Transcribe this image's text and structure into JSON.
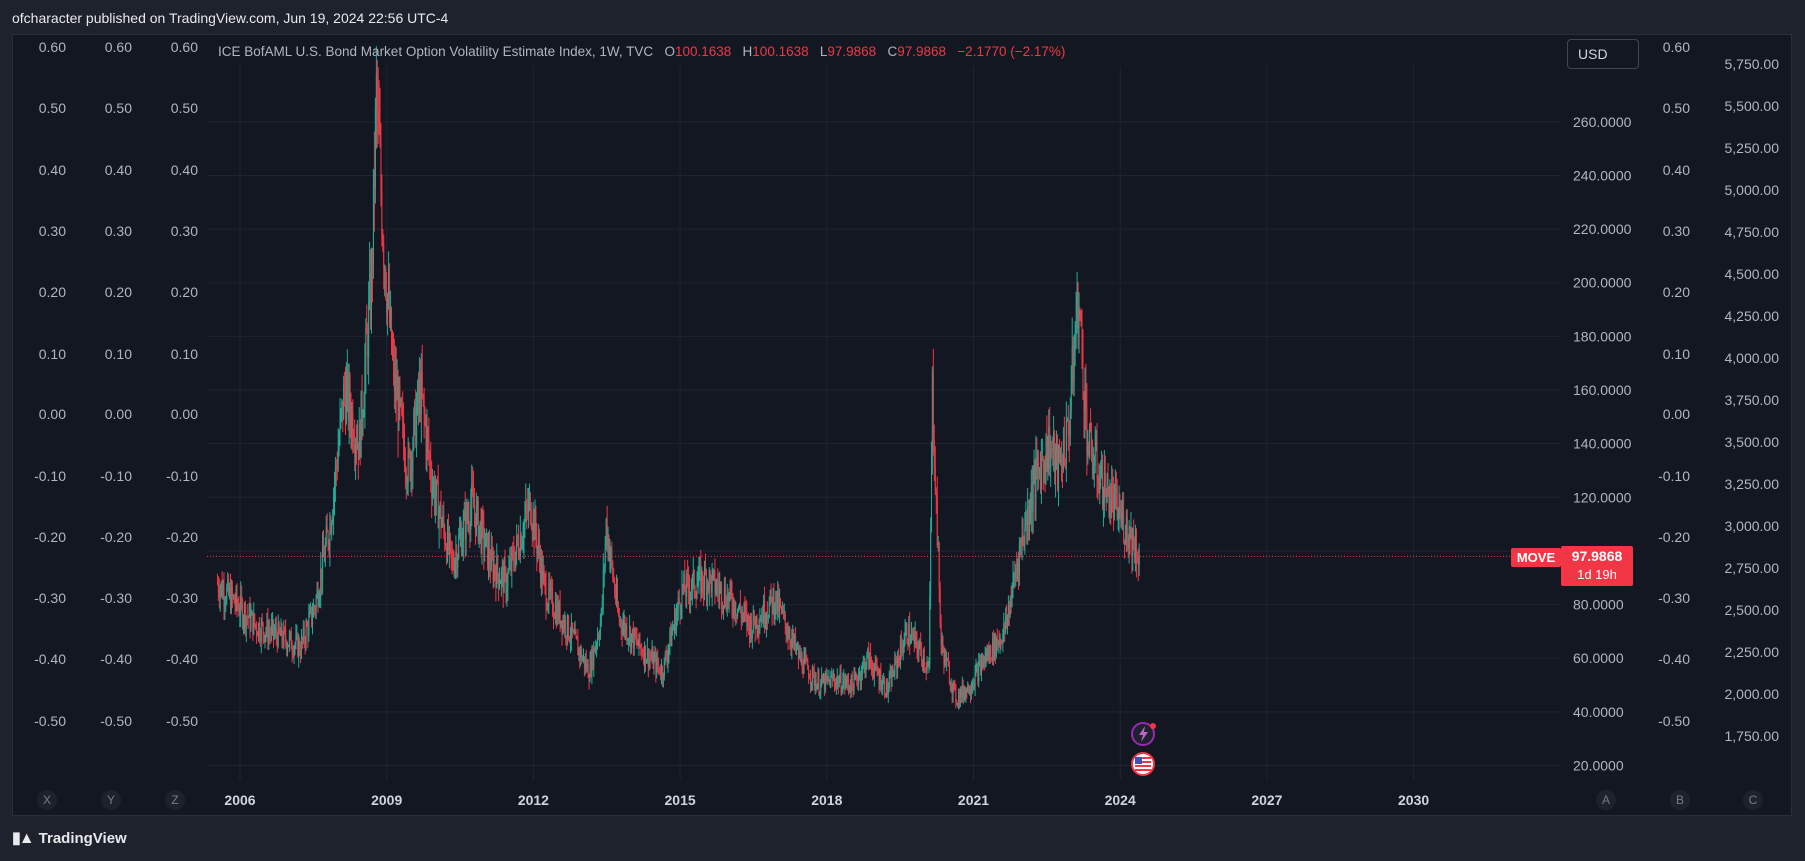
{
  "header": {
    "published": "ofcharacter published on TradingView.com, Jun 19, 2024 22:56 UTC-4"
  },
  "legend": {
    "title": "ICE BofAML U.S. Bond Market Option Volatility Estimate Index, 1W, TVC",
    "o_label": "O",
    "o_value": "100.1638",
    "h_label": "H",
    "h_value": "100.1638",
    "l_label": "L",
    "l_value": "97.9868",
    "c_label": "C",
    "c_value": "97.9868",
    "change": "−2.1770 (−2.17%)"
  },
  "currency": "USD",
  "footer": {
    "brand": "TradingView"
  },
  "colors": {
    "up": "#22ab94",
    "down": "#f23645",
    "background": "#131722",
    "text": "#b2b5be"
  },
  "icons": [
    "tradingview-logo-icon",
    "lightning-event-icon",
    "us-flag-icon"
  ],
  "chart_data": {
    "type": "candlestick",
    "symbol": "MOVE",
    "timeframe": "1W",
    "last_price": "97.9868",
    "countdown": "1d 19h",
    "x_ticks": [
      "2006",
      "2009",
      "2012",
      "2015",
      "2018",
      "2021",
      "2024",
      "2027",
      "2030"
    ],
    "y_right_ticks": [
      "260.0000",
      "240.0000",
      "220.0000",
      "200.0000",
      "180.0000",
      "160.0000",
      "140.0000",
      "120.0000",
      "80.0000",
      "60.0000",
      "40.0000",
      "20.0000"
    ],
    "y_range": [
      20,
      270
    ],
    "y_left_ticks": [
      "0.60",
      "0.50",
      "0.40",
      "0.30",
      "0.20",
      "0.10",
      "0.00",
      "-0.10",
      "-0.20",
      "-0.30",
      "-0.40",
      "-0.50"
    ],
    "y_far_right_ticks": [
      "5,750.00",
      "5,500.00",
      "5,250.00",
      "5,000.00",
      "4,750.00",
      "4,500.00",
      "4,250.00",
      "4,000.00",
      "3,750.00",
      "3,500.00",
      "3,250.00",
      "3,000.00",
      "2,750.00",
      "2,500.00",
      "2,250.00",
      "2,000.00",
      "1,750.00"
    ],
    "corner_labels_left": [
      "X",
      "Y",
      "Z"
    ],
    "corner_labels_right": [
      "A",
      "B",
      "C"
    ],
    "path": [
      [
        2005.6,
        88
      ],
      [
        2006.0,
        80
      ],
      [
        2006.4,
        72
      ],
      [
        2006.9,
        68
      ],
      [
        2007.3,
        64
      ],
      [
        2007.6,
        80
      ],
      [
        2007.9,
        110
      ],
      [
        2008.2,
        160
      ],
      [
        2008.5,
        140
      ],
      [
        2008.75,
        200
      ],
      [
        2008.85,
        270
      ],
      [
        2009.0,
        215
      ],
      [
        2009.2,
        165
      ],
      [
        2009.5,
        130
      ],
      [
        2009.75,
        160
      ],
      [
        2010.0,
        125
      ],
      [
        2010.4,
        95
      ],
      [
        2010.8,
        118
      ],
      [
        2011.2,
        95
      ],
      [
        2011.5,
        88
      ],
      [
        2011.7,
        100
      ],
      [
        2012.0,
        118
      ],
      [
        2012.3,
        85
      ],
      [
        2012.8,
        70
      ],
      [
        2013.2,
        55
      ],
      [
        2013.45,
        75
      ],
      [
        2013.55,
        110
      ],
      [
        2013.8,
        75
      ],
      [
        2014.2,
        65
      ],
      [
        2014.7,
        55
      ],
      [
        2015.1,
        85
      ],
      [
        2015.6,
        90
      ],
      [
        2016.2,
        80
      ],
      [
        2016.5,
        72
      ],
      [
        2017.0,
        82
      ],
      [
        2017.5,
        60
      ],
      [
        2017.9,
        50
      ],
      [
        2018.2,
        52
      ],
      [
        2018.6,
        50
      ],
      [
        2018.9,
        60
      ],
      [
        2019.3,
        48
      ],
      [
        2019.7,
        70
      ],
      [
        2020.0,
        62
      ],
      [
        2020.15,
        55
      ],
      [
        2020.22,
        160
      ],
      [
        2020.4,
        65
      ],
      [
        2020.7,
        45
      ],
      [
        2021.0,
        50
      ],
      [
        2021.3,
        60
      ],
      [
        2021.7,
        70
      ],
      [
        2022.0,
        100
      ],
      [
        2022.3,
        125
      ],
      [
        2022.6,
        140
      ],
      [
        2022.8,
        130
      ],
      [
        2023.0,
        145
      ],
      [
        2023.2,
        195
      ],
      [
        2023.4,
        140
      ],
      [
        2023.7,
        125
      ],
      [
        2024.0,
        115
      ],
      [
        2024.3,
        105
      ],
      [
        2024.45,
        98
      ]
    ]
  }
}
